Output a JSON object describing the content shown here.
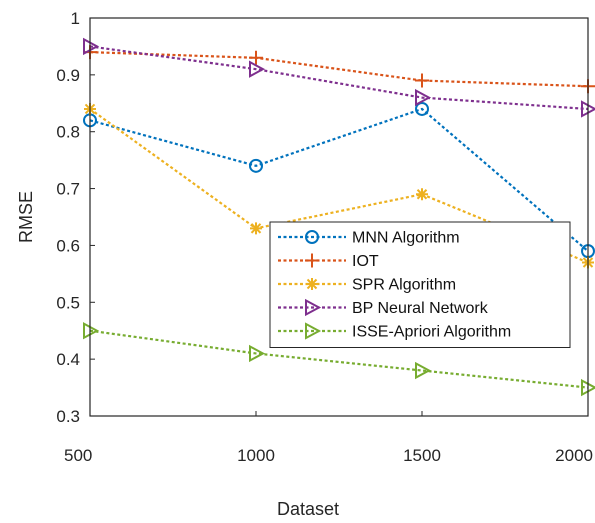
{
  "chart_data": {
    "type": "line",
    "xlabel": "Dataset",
    "ylabel": "RMSE",
    "x": [
      500,
      1000,
      1500,
      2000
    ],
    "xlim": [
      500,
      2000
    ],
    "ylim": [
      0.3,
      1.0
    ],
    "xticks": [
      "500",
      "1000",
      "1500",
      "2000"
    ],
    "yticks": [
      "0.3",
      "0.4",
      "0.5",
      "0.6",
      "0.7",
      "0.8",
      "0.9",
      "1"
    ],
    "grid": false,
    "legend_position": "right",
    "series": [
      {
        "name": "MNN Algorithm",
        "values": [
          0.82,
          0.74,
          0.84,
          0.59
        ],
        "color": "#0072BD",
        "marker": "circle"
      },
      {
        "name": "IOT",
        "values": [
          0.94,
          0.93,
          0.89,
          0.88
        ],
        "color": "#D95319",
        "marker": "plus"
      },
      {
        "name": "SPR Algorithm",
        "values": [
          0.84,
          0.63,
          0.69,
          0.57
        ],
        "color": "#EDB120",
        "marker": "asterisk"
      },
      {
        "name": "BP Neural Network",
        "values": [
          0.95,
          0.91,
          0.86,
          0.84
        ],
        "color": "#7E2F8E",
        "marker": "triangle-right"
      },
      {
        "name": "ISSE-Apriori Algorithm",
        "values": [
          0.45,
          0.41,
          0.38,
          0.35
        ],
        "color": "#77AC30",
        "marker": "triangle-right"
      }
    ]
  }
}
